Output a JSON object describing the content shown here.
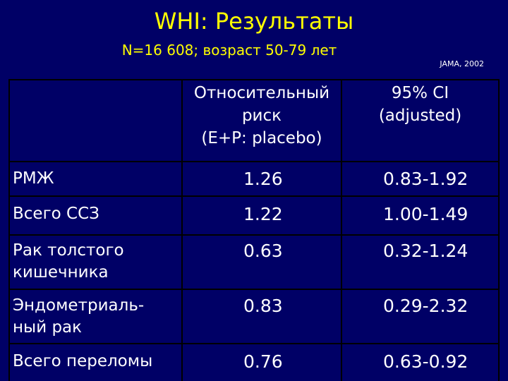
{
  "slide": {
    "title": "WHI: Результаты",
    "subtitle": "N=16 608; возраст 50-79 лет",
    "source": "JAMA, 2002"
  },
  "table": {
    "headers": {
      "relative_risk": [
        "Относительный",
        "риск",
        "(E+P: placebo)"
      ],
      "ci": [
        "95% CI",
        "(adjusted)"
      ]
    },
    "rows": [
      {
        "label": [
          "РМЖ"
        ],
        "rr": "1.26",
        "ci": "0.83-1.92"
      },
      {
        "label": [
          "Всего ССЗ"
        ],
        "rr": "1.22",
        "ci": "1.00-1.49"
      },
      {
        "label": [
          "Рак толстого",
          "кишечника"
        ],
        "rr": "0.63",
        "ci": "0.32-1.24"
      },
      {
        "label": [
          "Эндометриаль-",
          "ный рак"
        ],
        "rr": "0.83",
        "ci": "0.29-2.32"
      },
      {
        "label": [
          "Всего переломы"
        ],
        "rr": "0.76",
        "ci": "0.63-0.92"
      }
    ]
  },
  "colors": {
    "background": "#000066",
    "title": "#ffff00",
    "text": "#ffffff",
    "rules": "#000000"
  }
}
